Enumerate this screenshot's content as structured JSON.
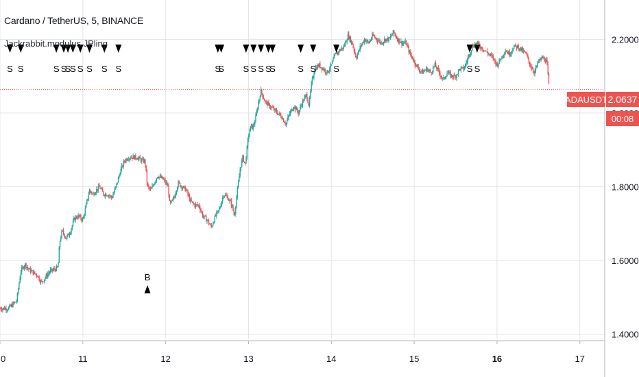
{
  "header": {
    "symbol_title": "Cardano / TetherUS, 5, BINANCE",
    "indicator_title": "Jackrabbit.modulus JPling"
  },
  "last_price": {
    "symbol": "ADAUSDT",
    "value": "2.0637",
    "countdown": "00:08"
  },
  "colors": {
    "up": "#26a69a",
    "down": "#ef5350",
    "grid": "#e1e4ea",
    "axis_text": "#131722",
    "price_line": "#ef5350",
    "marker": "#000000"
  },
  "chart_data": {
    "type": "candlestick",
    "title": "",
    "x_ticks": [
      "0",
      "11",
      "12",
      "13",
      "14",
      "15",
      "16",
      "17"
    ],
    "x_range": [
      10,
      17.3
    ],
    "y_ticks": [
      "2.2000",
      "2.0000",
      "1.8000",
      "1.6000",
      "1.4000"
    ],
    "y_range": [
      1.388,
      2.288
    ],
    "grid": true,
    "last_price_value": 2.0637,
    "price_path": [
      [
        10.0,
        1.47
      ],
      [
        10.1,
        1.47
      ],
      [
        10.2,
        1.49
      ],
      [
        10.25,
        1.57
      ],
      [
        10.3,
        1.59
      ],
      [
        10.35,
        1.575
      ],
      [
        10.45,
        1.56
      ],
      [
        10.5,
        1.54
      ],
      [
        10.55,
        1.555
      ],
      [
        10.6,
        1.57
      ],
      [
        10.65,
        1.575
      ],
      [
        10.7,
        1.58
      ],
      [
        10.72,
        1.65
      ],
      [
        10.75,
        1.68
      ],
      [
        10.8,
        1.66
      ],
      [
        10.85,
        1.68
      ],
      [
        10.9,
        1.715
      ],
      [
        10.95,
        1.72
      ],
      [
        11.0,
        1.71
      ],
      [
        11.05,
        1.76
      ],
      [
        11.08,
        1.79
      ],
      [
        11.12,
        1.78
      ],
      [
        11.2,
        1.8
      ],
      [
        11.25,
        1.78
      ],
      [
        11.3,
        1.78
      ],
      [
        11.35,
        1.77
      ],
      [
        11.4,
        1.8
      ],
      [
        11.45,
        1.84
      ],
      [
        11.5,
        1.87
      ],
      [
        11.55,
        1.88
      ],
      [
        11.65,
        1.88
      ],
      [
        11.72,
        1.87
      ],
      [
        11.75,
        1.87
      ],
      [
        11.78,
        1.8
      ],
      [
        11.82,
        1.79
      ],
      [
        11.9,
        1.83
      ],
      [
        11.97,
        1.82
      ],
      [
        12.03,
        1.8
      ],
      [
        12.05,
        1.75
      ],
      [
        12.1,
        1.77
      ],
      [
        12.15,
        1.81
      ],
      [
        12.2,
        1.8
      ],
      [
        12.25,
        1.79
      ],
      [
        12.3,
        1.76
      ],
      [
        12.35,
        1.75
      ],
      [
        12.4,
        1.75
      ],
      [
        12.45,
        1.72
      ],
      [
        12.5,
        1.71
      ],
      [
        12.55,
        1.69
      ],
      [
        12.6,
        1.72
      ],
      [
        12.65,
        1.74
      ],
      [
        12.7,
        1.78
      ],
      [
        12.75,
        1.77
      ],
      [
        12.8,
        1.75
      ],
      [
        12.83,
        1.72
      ],
      [
        12.86,
        1.78
      ],
      [
        12.9,
        1.85
      ],
      [
        12.93,
        1.88
      ],
      [
        12.96,
        1.86
      ],
      [
        13.0,
        1.94
      ],
      [
        13.03,
        1.965
      ],
      [
        13.05,
        1.96
      ],
      [
        13.08,
        1.98
      ],
      [
        13.12,
        2.03
      ],
      [
        13.15,
        2.06
      ],
      [
        13.2,
        2.03
      ],
      [
        13.25,
        2.02
      ],
      [
        13.3,
        2.01
      ],
      [
        13.35,
        2.0
      ],
      [
        13.4,
        1.99
      ],
      [
        13.45,
        1.97
      ],
      [
        13.5,
        2.0
      ],
      [
        13.55,
        2.02
      ],
      [
        13.6,
        2.0
      ],
      [
        13.65,
        2.03
      ],
      [
        13.7,
        2.05
      ],
      [
        13.73,
        2.02
      ],
      [
        13.76,
        2.08
      ],
      [
        13.8,
        2.12
      ],
      [
        13.85,
        2.13
      ],
      [
        13.9,
        2.12
      ],
      [
        13.95,
        2.11
      ],
      [
        14.0,
        2.13
      ],
      [
        14.05,
        2.16
      ],
      [
        14.1,
        2.17
      ],
      [
        14.15,
        2.18
      ],
      [
        14.2,
        2.21
      ],
      [
        14.25,
        2.19
      ],
      [
        14.3,
        2.15
      ],
      [
        14.35,
        2.18
      ],
      [
        14.4,
        2.2
      ],
      [
        14.45,
        2.19
      ],
      [
        14.5,
        2.21
      ],
      [
        14.55,
        2.2
      ],
      [
        14.6,
        2.19
      ],
      [
        14.65,
        2.2
      ],
      [
        14.7,
        2.2
      ],
      [
        14.75,
        2.22
      ],
      [
        14.8,
        2.2
      ],
      [
        14.85,
        2.19
      ],
      [
        14.9,
        2.19
      ],
      [
        14.95,
        2.16
      ],
      [
        15.0,
        2.14
      ],
      [
        15.05,
        2.12
      ],
      [
        15.1,
        2.11
      ],
      [
        15.15,
        2.12
      ],
      [
        15.2,
        2.11
      ],
      [
        15.25,
        2.13
      ],
      [
        15.3,
        2.11
      ],
      [
        15.35,
        2.09
      ],
      [
        15.4,
        2.11
      ],
      [
        15.45,
        2.1
      ],
      [
        15.5,
        2.1
      ],
      [
        15.55,
        2.12
      ],
      [
        15.6,
        2.12
      ],
      [
        15.65,
        2.15
      ],
      [
        15.7,
        2.18
      ],
      [
        15.75,
        2.19
      ],
      [
        15.8,
        2.18
      ],
      [
        15.85,
        2.17
      ],
      [
        15.9,
        2.16
      ],
      [
        15.95,
        2.15
      ],
      [
        16.0,
        2.13
      ],
      [
        16.05,
        2.15
      ],
      [
        16.1,
        2.17
      ],
      [
        16.15,
        2.16
      ],
      [
        16.2,
        2.18
      ],
      [
        16.25,
        2.18
      ],
      [
        16.3,
        2.17
      ],
      [
        16.35,
        2.16
      ],
      [
        16.4,
        2.13
      ],
      [
        16.45,
        2.11
      ],
      [
        16.5,
        2.14
      ],
      [
        16.55,
        2.15
      ],
      [
        16.6,
        2.14
      ],
      [
        16.63,
        2.064
      ]
    ],
    "sell_signals": [
      10.12,
      10.25,
      10.68,
      10.77,
      10.82,
      10.88,
      10.97,
      11.08,
      11.26,
      11.43,
      12.63,
      12.67,
      12.97,
      13.06,
      13.15,
      13.24,
      13.29,
      13.63,
      13.78,
      14.06,
      15.67,
      15.76
    ],
    "buy_signals": [
      {
        "x": 11.78,
        "y": 1.52
      }
    ],
    "sell_label": "S",
    "buy_label": "B"
  }
}
